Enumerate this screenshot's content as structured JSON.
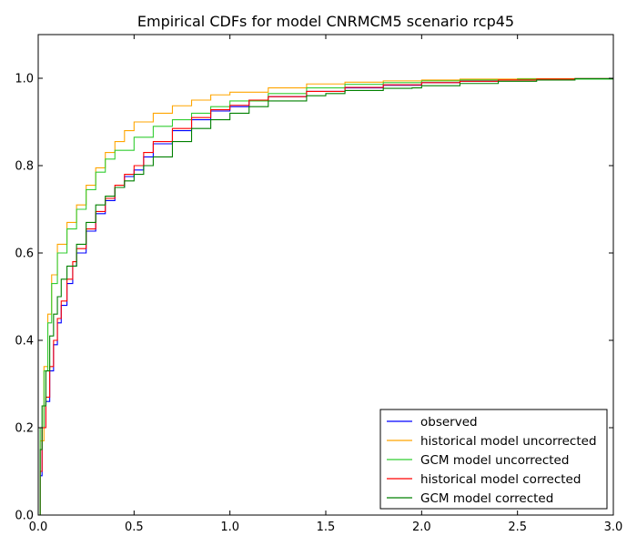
{
  "chart_data": {
    "type": "line",
    "title": "Empirical CDFs for model CNRMCM5 scenario rcp45",
    "xlabel": "",
    "ylabel": "",
    "xlim": [
      0.0,
      3.0
    ],
    "ylim": [
      0.0,
      1.1
    ],
    "x_ticks": [
      0.0,
      0.5,
      1.0,
      1.5,
      2.0,
      2.5,
      3.0
    ],
    "x_tick_labels": [
      "0.0",
      "0.5",
      "1.0",
      "1.5",
      "2.0",
      "2.5",
      "3.0"
    ],
    "y_ticks": [
      0.0,
      0.2,
      0.4,
      0.6,
      0.8,
      1.0
    ],
    "y_tick_labels": [
      "0.0",
      "0.2",
      "0.4",
      "0.6",
      "0.8",
      "1.0"
    ],
    "grid": false,
    "legend_position": "bottom-right",
    "series": [
      {
        "name": "observed",
        "color": "#0000ff",
        "x": [
          0.0,
          0.01,
          0.02,
          0.04,
          0.06,
          0.08,
          0.1,
          0.12,
          0.15,
          0.18,
          0.2,
          0.25,
          0.3,
          0.35,
          0.4,
          0.45,
          0.5,
          0.55,
          0.6,
          0.7,
          0.8,
          0.9,
          1.0,
          1.1,
          1.2,
          1.4,
          1.6,
          1.8,
          2.0,
          2.2,
          2.4,
          2.6,
          2.8,
          3.0
        ],
        "y": [
          0.0,
          0.09,
          0.2,
          0.26,
          0.33,
          0.39,
          0.44,
          0.48,
          0.53,
          0.57,
          0.6,
          0.65,
          0.69,
          0.72,
          0.75,
          0.775,
          0.79,
          0.82,
          0.85,
          0.88,
          0.905,
          0.925,
          0.935,
          0.95,
          0.958,
          0.97,
          0.978,
          0.984,
          0.99,
          0.993,
          0.996,
          0.998,
          0.999,
          1.0
        ]
      },
      {
        "name": "historical model uncorrected",
        "color": "#ffa500",
        "x": [
          0.0,
          0.01,
          0.03,
          0.05,
          0.07,
          0.1,
          0.15,
          0.2,
          0.25,
          0.3,
          0.35,
          0.4,
          0.45,
          0.5,
          0.6,
          0.7,
          0.8,
          0.9,
          1.0,
          1.2,
          1.4,
          1.6,
          1.8,
          2.0,
          2.2,
          2.5,
          3.0
        ],
        "y": [
          0.0,
          0.17,
          0.34,
          0.46,
          0.55,
          0.62,
          0.67,
          0.71,
          0.755,
          0.795,
          0.83,
          0.855,
          0.88,
          0.9,
          0.92,
          0.937,
          0.95,
          0.962,
          0.968,
          0.978,
          0.987,
          0.991,
          0.994,
          0.996,
          0.998,
          0.999,
          1.0
        ]
      },
      {
        "name": "GCM model uncorrected",
        "color": "#32cd32",
        "x": [
          0.0,
          0.01,
          0.03,
          0.05,
          0.07,
          0.1,
          0.15,
          0.2,
          0.25,
          0.3,
          0.35,
          0.4,
          0.5,
          0.6,
          0.7,
          0.8,
          0.9,
          1.0,
          1.2,
          1.4,
          1.6,
          1.8,
          2.0,
          2.2,
          2.5,
          3.0
        ],
        "y": [
          0.0,
          0.2,
          0.33,
          0.44,
          0.53,
          0.6,
          0.655,
          0.7,
          0.745,
          0.785,
          0.815,
          0.835,
          0.865,
          0.89,
          0.905,
          0.92,
          0.935,
          0.948,
          0.965,
          0.978,
          0.986,
          0.99,
          0.994,
          0.996,
          0.998,
          1.0
        ]
      },
      {
        "name": "historical model corrected",
        "color": "#ff0000",
        "x": [
          0.0,
          0.005,
          0.01,
          0.02,
          0.04,
          0.06,
          0.08,
          0.1,
          0.12,
          0.15,
          0.18,
          0.2,
          0.25,
          0.3,
          0.35,
          0.4,
          0.45,
          0.5,
          0.55,
          0.6,
          0.7,
          0.8,
          0.9,
          1.0,
          1.1,
          1.2,
          1.4,
          1.6,
          1.8,
          2.0,
          2.2,
          2.4,
          2.6,
          2.8,
          3.0
        ],
        "y": [
          0.0,
          0.0,
          0.1,
          0.2,
          0.27,
          0.34,
          0.4,
          0.45,
          0.49,
          0.54,
          0.58,
          0.61,
          0.655,
          0.695,
          0.725,
          0.755,
          0.78,
          0.8,
          0.83,
          0.855,
          0.885,
          0.91,
          0.928,
          0.938,
          0.95,
          0.958,
          0.97,
          0.979,
          0.985,
          0.99,
          0.993,
          0.996,
          0.998,
          0.999,
          1.0
        ]
      },
      {
        "name": "GCM model corrected",
        "color": "#008000",
        "x": [
          0.0,
          0.01,
          0.02,
          0.04,
          0.06,
          0.08,
          0.1,
          0.12,
          0.15,
          0.2,
          0.25,
          0.3,
          0.35,
          0.4,
          0.45,
          0.5,
          0.55,
          0.6,
          0.7,
          0.8,
          0.9,
          1.0,
          1.1,
          1.2,
          1.4,
          1.5,
          1.6,
          1.8,
          1.95,
          2.0,
          2.2,
          2.4,
          2.6,
          2.8,
          3.0
        ],
        "y": [
          0.0,
          0.15,
          0.25,
          0.33,
          0.41,
          0.46,
          0.5,
          0.54,
          0.57,
          0.62,
          0.67,
          0.71,
          0.73,
          0.75,
          0.765,
          0.78,
          0.8,
          0.82,
          0.855,
          0.885,
          0.905,
          0.92,
          0.935,
          0.948,
          0.96,
          0.965,
          0.972,
          0.977,
          0.978,
          0.983,
          0.988,
          0.993,
          0.996,
          0.999,
          1.0
        ]
      }
    ]
  }
}
